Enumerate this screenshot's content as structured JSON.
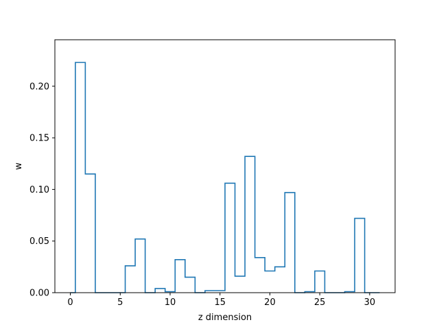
{
  "chart_data": {
    "type": "step",
    "xlabel": "z dimension",
    "ylabel": "w",
    "xlim": [
      -1.55,
      32.55
    ],
    "ylim": [
      0,
      0.245
    ],
    "xticks": [
      0,
      5,
      10,
      15,
      20,
      25,
      30
    ],
    "yticks": [
      0.0,
      0.05,
      0.1,
      0.15,
      0.2
    ],
    "ytick_labels": [
      "0.00",
      "0.05",
      "0.10",
      "0.15",
      "0.20"
    ],
    "step_where": "mid",
    "line_color": "#1f77b4",
    "x": [
      0,
      1,
      2,
      3,
      4,
      5,
      6,
      7,
      8,
      9,
      10,
      11,
      12,
      13,
      14,
      15,
      16,
      17,
      18,
      19,
      20,
      21,
      22,
      23,
      24,
      25,
      26,
      27,
      28,
      29,
      30,
      31
    ],
    "y": [
      0.0,
      0.223,
      0.115,
      0.0,
      0.0,
      0.0,
      0.026,
      0.052,
      0.0,
      0.004,
      0.001,
      0.032,
      0.015,
      0.0,
      0.002,
      0.002,
      0.106,
      0.016,
      0.132,
      0.034,
      0.021,
      0.025,
      0.097,
      0.0,
      0.001,
      0.021,
      0.0,
      0.0,
      0.001,
      0.072,
      0.0,
      0.0
    ]
  }
}
